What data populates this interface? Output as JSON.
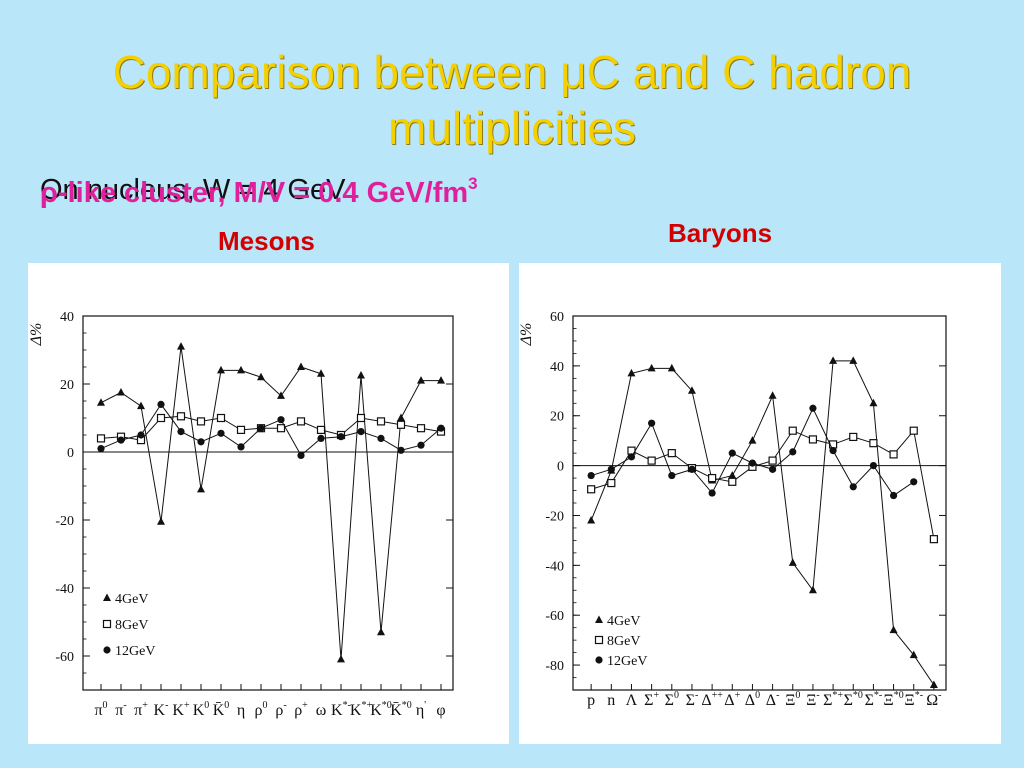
{
  "slide": {
    "title_line1": "Comparison between μC and C hadron",
    "title_line2": "multiplicities",
    "subtitle_a": "ρ-like cluster, M/V = 0.4 GeV/fm",
    "subtitle_b": "On nucleus, W = 4 GeV",
    "subtitle_sup": "3",
    "mesons_label": "Mesons",
    "baryons_label": "Baryons"
  },
  "colors": {
    "background": "#b9e6f9",
    "title": "#f5d000",
    "label": "#d40000",
    "accent": "#e0209a"
  },
  "chart_data": [
    {
      "type": "line",
      "title": "Mesons",
      "ylabel": "Δ%",
      "ylim": [
        -70,
        40
      ],
      "yticks": [
        40,
        20,
        0,
        -20,
        -40,
        -60
      ],
      "categories": [
        "π0",
        "π-",
        "π+",
        "K-",
        "K+",
        "K0",
        "K̄0",
        "η",
        "ρ0",
        "ρ-",
        "ρ+",
        "ω",
        "K*-",
        "K*+",
        "K*0",
        "K̄*0",
        "η'",
        "φ"
      ],
      "x_tick_labels": [
        {
          "base": "π",
          "sup": "0"
        },
        {
          "base": "π",
          "sup": "-"
        },
        {
          "base": "π",
          "sup": "+"
        },
        {
          "base": "K",
          "sup": "-"
        },
        {
          "base": "K",
          "sup": "+"
        },
        {
          "base": "K",
          "sup": "0"
        },
        {
          "base": "K̄",
          "sup": "0"
        },
        {
          "base": "η",
          "sup": ""
        },
        {
          "base": "ρ",
          "sup": "0"
        },
        {
          "base": "ρ",
          "sup": "-"
        },
        {
          "base": "ρ",
          "sup": "+"
        },
        {
          "base": "ω",
          "sup": ""
        },
        {
          "base": "K",
          "sup": "*-"
        },
        {
          "base": "K",
          "sup": "*+"
        },
        {
          "base": "K",
          "sup": "*0"
        },
        {
          "base": "K̄",
          "sup": "*0"
        },
        {
          "base": "η",
          "sup": "'"
        },
        {
          "base": "φ",
          "sup": ""
        }
      ],
      "series": [
        {
          "name": "4GeV",
          "marker": "triangle",
          "values": [
            14.5,
            17.5,
            13.5,
            -20.5,
            31,
            -11,
            24,
            24,
            22,
            16.5,
            25,
            23,
            -61,
            22.5,
            -53,
            10,
            21,
            21
          ]
        },
        {
          "name": "8GeV",
          "marker": "square",
          "values": [
            4,
            4.5,
            3.5,
            10,
            10.5,
            9,
            10,
            6.5,
            7,
            7,
            9,
            6.5,
            5,
            10,
            9,
            8,
            7,
            6
          ]
        },
        {
          "name": "12GeV",
          "marker": "circle",
          "values": [
            1,
            3.5,
            5,
            14,
            6,
            3,
            5.5,
            1.5,
            7,
            9.5,
            -1,
            4,
            4.5,
            6,
            4,
            0.5,
            2,
            7
          ]
        }
      ],
      "legend_position": "bottom-left"
    },
    {
      "type": "line",
      "title": "Baryons",
      "ylabel": "Δ%",
      "ylim": [
        -90,
        60
      ],
      "yticks": [
        60,
        40,
        20,
        0,
        -20,
        -40,
        -60,
        -80
      ],
      "categories": [
        "p",
        "n",
        "Λ",
        "Σ+",
        "Σ0",
        "Σ-",
        "Δ++",
        "Δ+",
        "Δ0",
        "Δ-",
        "Ξ0",
        "Ξ-",
        "Σ*+",
        "Σ*0",
        "Σ*-",
        "Ξ*0",
        "Ξ*-",
        "Ω-"
      ],
      "x_tick_labels": [
        {
          "base": "p",
          "sup": ""
        },
        {
          "base": "n",
          "sup": ""
        },
        {
          "base": "Λ",
          "sup": ""
        },
        {
          "base": "Σ",
          "sup": "+"
        },
        {
          "base": "Σ",
          "sup": "0"
        },
        {
          "base": "Σ",
          "sup": "-"
        },
        {
          "base": "Δ",
          "sup": "++"
        },
        {
          "base": "Δ",
          "sup": "+"
        },
        {
          "base": "Δ",
          "sup": "0"
        },
        {
          "base": "Δ",
          "sup": "-"
        },
        {
          "base": "Ξ",
          "sup": "0"
        },
        {
          "base": "Ξ",
          "sup": "-"
        },
        {
          "base": "Σ",
          "sup": "*+"
        },
        {
          "base": "Σ",
          "sup": "*0"
        },
        {
          "base": "Σ",
          "sup": "*-"
        },
        {
          "base": "Ξ",
          "sup": "*0"
        },
        {
          "base": "Ξ",
          "sup": "*-"
        },
        {
          "base": "Ω",
          "sup": "-"
        }
      ],
      "series": [
        {
          "name": "4GeV",
          "marker": "triangle",
          "values": [
            -22,
            -2,
            37,
            39,
            39,
            30,
            -6,
            -4,
            10,
            28,
            -39,
            -50,
            42,
            42,
            25,
            -66,
            -76,
            -88
          ]
        },
        {
          "name": "8GeV",
          "marker": "square",
          "values": [
            -9.5,
            -7,
            6,
            2,
            5,
            -1,
            -5,
            -6.5,
            -0.5,
            2,
            14,
            10.5,
            8.5,
            11.5,
            9,
            4.5,
            14,
            -29.5
          ]
        },
        {
          "name": "12GeV",
          "marker": "circle",
          "values": [
            -4,
            -1.5,
            3.5,
            17,
            -4,
            -1.5,
            -11,
            5,
            1,
            -1.5,
            5.5,
            23,
            6,
            -8.5,
            0,
            -12,
            -6.5,
            null
          ]
        }
      ],
      "legend_position": "bottom-left"
    }
  ]
}
